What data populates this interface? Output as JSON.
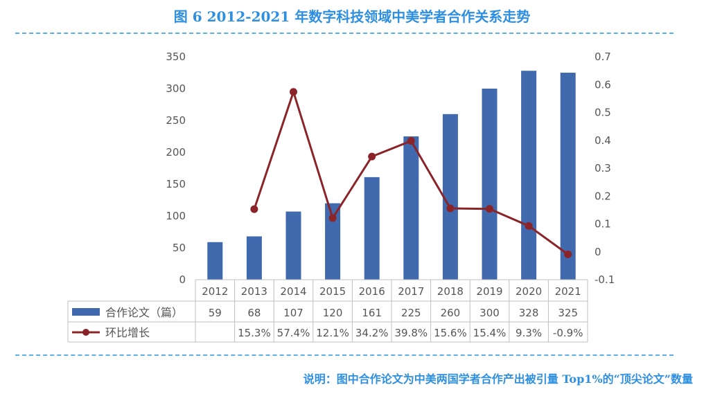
{
  "title": "图 6  2012-2021 年数字科技领域中美学者合作关系走势",
  "note": "说明：图中合作论文为中美两国学者合作产出被引量 Top1%的“顶尖论文”数量",
  "chart_data": {
    "type": "bar",
    "categories": [
      "2012",
      "2013",
      "2014",
      "2015",
      "2016",
      "2017",
      "2018",
      "2019",
      "2020",
      "2021"
    ],
    "series": [
      {
        "name": "合作论文（篇）",
        "type": "bar",
        "axis": "left",
        "color": "#4169ad",
        "values": [
          59,
          68,
          107,
          120,
          161,
          225,
          260,
          300,
          328,
          325
        ],
        "labels": [
          "59",
          "68",
          "107",
          "120",
          "161",
          "225",
          "260",
          "300",
          "328",
          "325"
        ]
      },
      {
        "name": "环比增长",
        "type": "line",
        "axis": "right",
        "color": "#8b2428",
        "values": [
          null,
          0.153,
          0.574,
          0.121,
          0.342,
          0.398,
          0.156,
          0.154,
          0.093,
          -0.009
        ],
        "labels": [
          "",
          "15.3%",
          "57.4%",
          "12.1%",
          "34.2%",
          "39.8%",
          "15.6%",
          "15.4%",
          "9.3%",
          "-0.9%"
        ]
      }
    ],
    "y_left": {
      "ylim": [
        0,
        350
      ],
      "ticks": [
        "0",
        "50",
        "100",
        "150",
        "200",
        "250",
        "300",
        "350"
      ]
    },
    "y_right": {
      "ylim": [
        -0.1,
        0.7
      ],
      "ticks": [
        "-0.1",
        "0",
        "0.1",
        "0.2",
        "0.3",
        "0.4",
        "0.5",
        "0.6",
        "0.7"
      ]
    },
    "grid": false,
    "legend": "data-table"
  }
}
